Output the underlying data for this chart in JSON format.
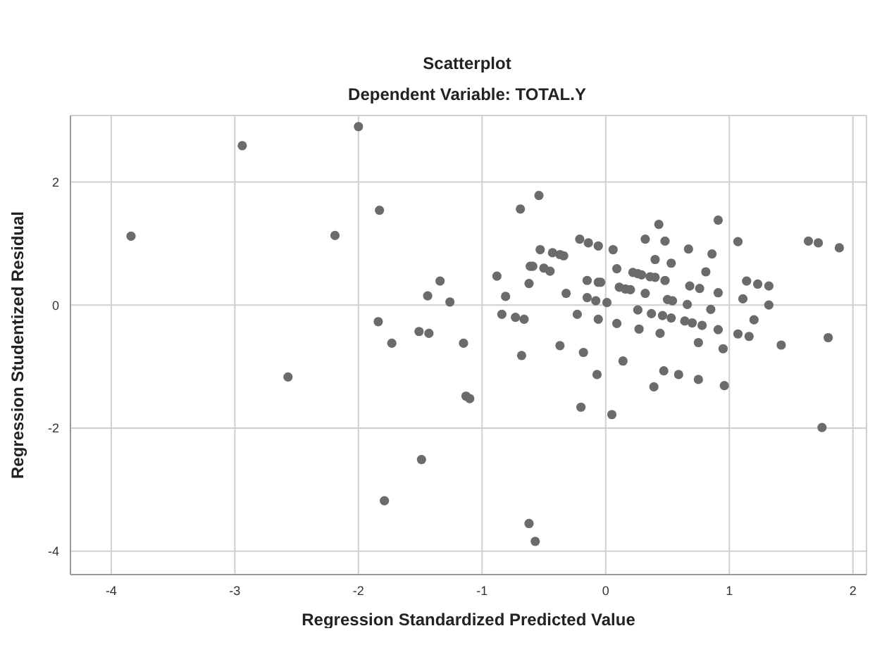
{
  "chart_data": {
    "type": "scatter",
    "title": "Scatterplot",
    "subtitle": "Dependent Variable: TOTAL.Y",
    "xlabel": "Regression Standardized Predicted Value",
    "ylabel": "Regression Studentized Residual",
    "xlim": [
      -4.33,
      2.11
    ],
    "ylim": [
      -4.38,
      3.08
    ],
    "xticks": [
      -4,
      -3,
      -2,
      -1,
      0,
      1,
      2
    ],
    "yticks": [
      -4,
      -2,
      0,
      2
    ],
    "grid": true,
    "marker": "circle",
    "series": [
      {
        "color": "#6b6b6b",
        "x": [
          -3.84,
          -2.94,
          -2.0,
          -1.83,
          -2.19,
          -1.34,
          -1.44,
          -1.26,
          -1.84,
          -1.73,
          -1.51,
          -1.43,
          -1.15,
          -2.57,
          -1.13,
          -1.1,
          -1.49,
          -1.79,
          -0.54,
          -0.69,
          0.43,
          0.91,
          -0.21,
          -0.14,
          -0.06,
          0.06,
          0.32,
          0.48,
          0.67,
          0.86,
          1.07,
          1.64,
          1.72,
          1.89,
          -0.53,
          -0.43,
          -0.37,
          -0.34,
          -0.61,
          -0.59,
          -0.5,
          -0.45,
          -0.88,
          -0.62,
          -0.81,
          -0.32,
          -0.15,
          -0.06,
          -0.04,
          0.09,
          0.4,
          0.53,
          0.22,
          0.26,
          0.29,
          0.36,
          0.4,
          0.48,
          0.81,
          0.11,
          0.16,
          0.2,
          0.32,
          0.68,
          0.76,
          0.91,
          1.11,
          1.14,
          1.23,
          1.32,
          1.32,
          -0.15,
          -0.08,
          0.01,
          0.5,
          0.54,
          0.66,
          0.85,
          -0.84,
          -0.73,
          -0.66,
          -0.23,
          -0.06,
          0.09,
          0.26,
          0.37,
          0.46,
          0.53,
          0.64,
          0.7,
          0.78,
          0.27,
          0.44,
          0.91,
          1.07,
          1.16,
          1.2,
          0.75,
          0.95,
          1.42,
          1.8,
          -0.37,
          -0.18,
          -0.68,
          0.14,
          -0.07,
          0.47,
          0.59,
          0.75,
          0.39,
          0.96,
          -0.2,
          0.05,
          1.75,
          -0.62,
          -0.57
        ],
        "values": [
          1.12,
          2.59,
          2.9,
          1.54,
          1.13,
          0.39,
          0.15,
          0.05,
          -0.27,
          -0.62,
          -0.43,
          -0.46,
          -0.62,
          -1.17,
          -1.48,
          -1.52,
          -2.51,
          -3.18,
          1.78,
          1.56,
          1.31,
          1.38,
          1.07,
          1.01,
          0.96,
          0.9,
          1.07,
          1.04,
          0.91,
          0.83,
          1.03,
          1.04,
          1.01,
          0.93,
          0.9,
          0.85,
          0.82,
          0.8,
          0.63,
          0.63,
          0.6,
          0.55,
          0.47,
          0.35,
          0.14,
          0.19,
          0.4,
          0.37,
          0.37,
          0.59,
          0.74,
          0.68,
          0.53,
          0.51,
          0.49,
          0.46,
          0.45,
          0.4,
          0.54,
          0.29,
          0.26,
          0.25,
          0.19,
          0.31,
          0.27,
          0.2,
          0.1,
          0.39,
          0.34,
          0.31,
          0.0,
          0.12,
          0.07,
          0.04,
          0.09,
          0.07,
          0.01,
          -0.07,
          -0.15,
          -0.2,
          -0.23,
          -0.15,
          -0.23,
          -0.3,
          -0.08,
          -0.14,
          -0.17,
          -0.21,
          -0.26,
          -0.29,
          -0.33,
          -0.39,
          -0.46,
          -0.4,
          -0.47,
          -0.51,
          -0.24,
          -0.61,
          -0.71,
          -0.65,
          -0.53,
          -0.66,
          -0.77,
          -0.82,
          -0.91,
          -1.13,
          -1.07,
          -1.13,
          -1.21,
          -1.33,
          -1.31,
          -1.66,
          -1.78,
          -1.99,
          -3.55,
          -3.84
        ]
      }
    ]
  }
}
